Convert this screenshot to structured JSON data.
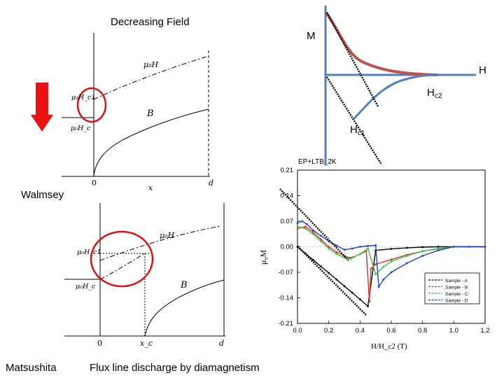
{
  "titles": {
    "decreasing_field": "Decreasing Field",
    "walmsey": "Walmsey",
    "matsushita": "Matsushita",
    "flux_caption": "Flux line discharge by diamagnetism"
  },
  "top_diagram": {
    "label_mu0H": "μ₀H",
    "label_mu0Hc1": "μ₀H_c1",
    "label_mu0Hc": "μ₀H_c",
    "label_B": "B",
    "label_zero": "0",
    "label_x": "x",
    "label_d": "d"
  },
  "bottom_diagram": {
    "label_mu0H": "μ₀H",
    "label_mu0Hc1": "μ₀H_c1",
    "label_mu0Hc": "μ₀H_c",
    "label_B": "B",
    "label_zero": "0",
    "label_xc": "x_c",
    "label_d": "d"
  },
  "mh_sketch": {
    "label_M": "M",
    "label_H": "H",
    "label_Hc2": "H",
    "label_Hc2_sub": "c2",
    "label_Hc1": "H",
    "label_Hc1_sub": "c1",
    "colors": {
      "axis": "#4f81bd",
      "curve_upper": "#c0504d",
      "curve_lower": "#4f81bd"
    }
  },
  "chart_data": {
    "type": "line",
    "title": "EP+LTB_2K",
    "xlabel": "H/H_c2 (T)",
    "ylabel": "μ₀M",
    "xlim": [
      0.0,
      1.2
    ],
    "ylim": [
      -0.21,
      0.21
    ],
    "x_ticks": [
      "0.0",
      "0.2",
      "0.4",
      "0.6",
      "0.8",
      "1.0",
      "1.2"
    ],
    "y_ticks": [
      "0.21",
      "0.14",
      "0.07",
      "0.00",
      "-0.07",
      "-0.14",
      "-0.21"
    ],
    "legend_position": "bottom-right",
    "series": [
      {
        "name": "Sample - A",
        "color": "#000000",
        "x": [
          0.0,
          0.05,
          0.1,
          0.15,
          0.2,
          0.25,
          0.3,
          0.35,
          0.4,
          0.45,
          0.5,
          0.6,
          0.7,
          0.8,
          0.9,
          1.0,
          1.1,
          1.2
        ],
        "y": [
          0.0,
          -0.018,
          -0.036,
          -0.054,
          -0.072,
          -0.09,
          -0.108,
          -0.126,
          -0.144,
          -0.163,
          -0.01,
          -0.006,
          -0.003,
          -0.001,
          0.0,
          0.0,
          0.0,
          0.0
        ]
      },
      {
        "name": "Sample - B",
        "color": "#e0302c",
        "x": [
          0.0,
          0.05,
          0.1,
          0.15,
          0.2,
          0.25,
          0.3,
          0.33,
          0.36,
          0.4,
          0.44,
          0.46,
          0.47,
          0.5,
          0.6,
          0.7,
          0.8,
          0.9,
          1.0,
          1.2
        ],
        "y": [
          0.05,
          0.055,
          0.04,
          0.02,
          0.0,
          -0.015,
          -0.025,
          -0.03,
          -0.028,
          -0.02,
          -0.012,
          -0.15,
          -0.06,
          -0.048,
          -0.035,
          -0.022,
          -0.012,
          -0.006,
          0.0,
          0.0
        ]
      },
      {
        "name": "Sample - C",
        "color": "#2ecc40",
        "x": [
          0.0,
          0.05,
          0.1,
          0.15,
          0.2,
          0.25,
          0.3,
          0.34,
          0.4,
          0.45,
          0.5,
          0.55,
          0.6,
          0.7,
          0.8,
          0.9,
          1.0,
          1.2
        ],
        "y": [
          0.055,
          0.05,
          0.035,
          0.015,
          -0.005,
          -0.02,
          -0.03,
          -0.033,
          -0.02,
          -0.005,
          -0.075,
          -0.055,
          -0.04,
          -0.025,
          -0.012,
          -0.005,
          0.0,
          0.0
        ]
      },
      {
        "name": "Sample - D",
        "color": "#1f3fd4",
        "x": [
          0.0,
          0.03,
          0.06,
          0.1,
          0.15,
          0.2,
          0.25,
          0.3,
          0.35,
          0.4,
          0.45,
          0.5,
          0.52,
          0.55,
          0.6,
          0.7,
          0.8,
          0.9,
          1.0,
          1.2
        ],
        "y": [
          0.065,
          0.07,
          0.062,
          0.045,
          0.03,
          0.015,
          0.003,
          -0.008,
          -0.005,
          0.0,
          0.002,
          0.004,
          -0.11,
          -0.09,
          -0.07,
          -0.045,
          -0.025,
          -0.01,
          0.0,
          0.0
        ]
      }
    ]
  }
}
